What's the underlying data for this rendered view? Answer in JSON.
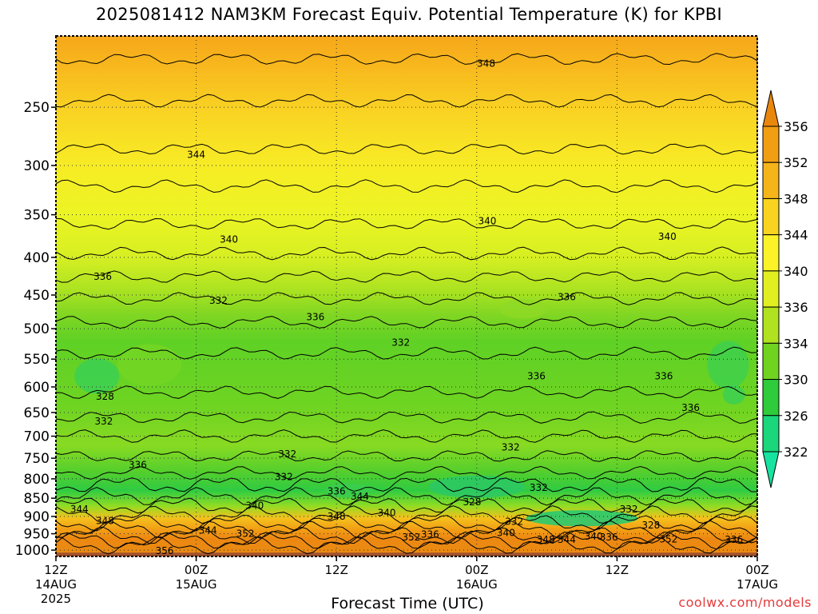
{
  "title": "2025081412 NAM3KM Forecast Equiv. Potential Temperature (K) for KPBI",
  "credit": "coolwx.com/models",
  "chart_data": {
    "type": "heatmap",
    "title": "2025081412 NAM3KM Forecast Equiv. Potential Temperature (K) for KPBI",
    "xlabel": "Forecast Time (UTC)",
    "ylabel": "",
    "x_ticks": [
      {
        "h": 0,
        "lines": [
          "12Z",
          "14AUG",
          "2025"
        ]
      },
      {
        "h": 12,
        "lines": [
          "00Z",
          "15AUG"
        ]
      },
      {
        "h": 24,
        "lines": [
          "12Z"
        ]
      },
      {
        "h": 36,
        "lines": [
          "00Z",
          "16AUG"
        ]
      },
      {
        "h": 48,
        "lines": [
          "12Z"
        ]
      },
      {
        "h": 60,
        "lines": [
          "00Z",
          "17AUG"
        ]
      }
    ],
    "xlim": [
      0,
      60
    ],
    "y_scale": "log-pressure",
    "ylim": [
      1020,
      200
    ],
    "y_ticks": [
      250,
      300,
      350,
      400,
      450,
      500,
      550,
      600,
      650,
      700,
      750,
      800,
      850,
      900,
      950,
      1000
    ],
    "grid": true,
    "colorbar": {
      "labels": [
        356,
        352,
        348,
        344,
        340,
        336,
        334,
        330,
        326,
        322
      ],
      "colors": [
        "#e9870d",
        "#f19e12",
        "#f5b51a",
        "#f8d420",
        "#fbf227",
        "#e1ef21",
        "#b0e21f",
        "#6fd320",
        "#2ecb3a",
        "#19d77a",
        "#16e3a0"
      ]
    },
    "contour_labels": [
      {
        "v": 348,
        "h": 36.8,
        "p": 218
      },
      {
        "v": 344,
        "h": 12.0,
        "p": 290
      },
      {
        "v": 340,
        "h": 14.8,
        "p": 378
      },
      {
        "v": 340,
        "h": 36.9,
        "p": 357
      },
      {
        "v": 340,
        "h": 52.3,
        "p": 375
      },
      {
        "v": 336,
        "h": 4.0,
        "p": 425
      },
      {
        "v": 336,
        "h": 43.7,
        "p": 453
      },
      {
        "v": 336,
        "h": 22.2,
        "p": 482
      },
      {
        "v": 336,
        "h": 41.1,
        "p": 580
      },
      {
        "v": 336,
        "h": 52.0,
        "p": 580
      },
      {
        "v": 336,
        "h": 54.3,
        "p": 640
      },
      {
        "v": 336,
        "h": 7.0,
        "p": 766
      },
      {
        "v": 336,
        "h": 24.0,
        "p": 832
      },
      {
        "v": 332,
        "h": 13.9,
        "p": 458
      },
      {
        "v": 332,
        "h": 29.5,
        "p": 522
      },
      {
        "v": 332,
        "h": 4.1,
        "p": 668
      },
      {
        "v": 332,
        "h": 19.8,
        "p": 740
      },
      {
        "v": 332,
        "h": 19.5,
        "p": 795
      },
      {
        "v": 332,
        "h": 38.9,
        "p": 725
      },
      {
        "v": 332,
        "h": 41.3,
        "p": 822
      },
      {
        "v": 332,
        "h": 49.0,
        "p": 880
      },
      {
        "v": 332,
        "h": 39.2,
        "p": 915
      },
      {
        "v": 328,
        "h": 4.2,
        "p": 618
      },
      {
        "v": 328,
        "h": 35.6,
        "p": 860
      },
      {
        "v": 328,
        "h": 50.9,
        "p": 925
      },
      {
        "v": 344,
        "h": 2.0,
        "p": 880
      },
      {
        "v": 344,
        "h": 26.0,
        "p": 845
      },
      {
        "v": 344,
        "h": 13.0,
        "p": 940
      },
      {
        "v": 344,
        "h": 43.7,
        "p": 968
      },
      {
        "v": 348,
        "h": 4.2,
        "p": 912
      },
      {
        "v": 348,
        "h": 24.0,
        "p": 900
      },
      {
        "v": 348,
        "h": 41.9,
        "p": 968
      },
      {
        "v": 340,
        "h": 17.0,
        "p": 870
      },
      {
        "v": 340,
        "h": 28.3,
        "p": 890
      },
      {
        "v": 340,
        "h": 46.0,
        "p": 958
      },
      {
        "v": 340,
        "h": 38.5,
        "p": 948
      },
      {
        "v": 352,
        "h": 16.2,
        "p": 950
      },
      {
        "v": 352,
        "h": 30.4,
        "p": 960
      },
      {
        "v": 352,
        "h": 52.4,
        "p": 966
      },
      {
        "v": 336,
        "h": 32.0,
        "p": 952
      },
      {
        "v": 336,
        "h": 47.3,
        "p": 960
      },
      {
        "v": 336,
        "h": 58.0,
        "p": 968
      },
      {
        "v": 356,
        "h": 9.3,
        "p": 1002
      }
    ]
  }
}
